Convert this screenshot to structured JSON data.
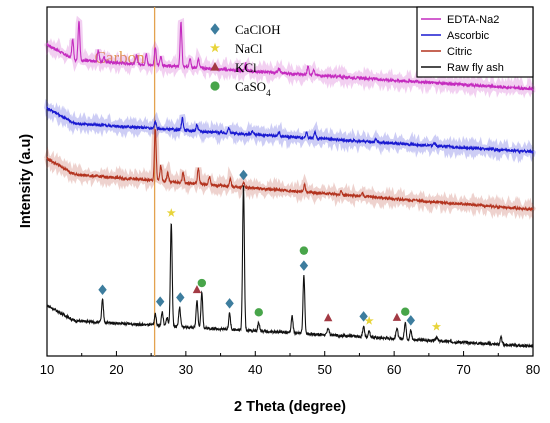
{
  "chart_data": {
    "type": "line",
    "xlabel": "2 Theta (degree)",
    "ylabel": "Intensity (a.u)",
    "xlim": [
      10,
      80
    ],
    "x_ticks": [
      10,
      20,
      30,
      40,
      50,
      60,
      70,
      80
    ],
    "y_ticks_shown": false,
    "grid": false,
    "legend_placement": "top-right",
    "reference_line": {
      "x": 25.5,
      "label": "Carbon",
      "color": "#e3a24f"
    },
    "series": [
      {
        "name": "EDTA-Na2",
        "color": "#c42bbf",
        "baseline": [
          [
            10,
            0.853
          ],
          [
            80,
            0.765
          ]
        ],
        "peaks": [
          [
            13.7,
            0.055
          ],
          [
            14.6,
            0.112
          ],
          [
            17.4,
            0.032
          ],
          [
            18.2,
            0.015
          ],
          [
            22.9,
            0.024
          ],
          [
            24.3,
            0.03
          ],
          [
            25.6,
            0.05
          ],
          [
            26.4,
            0.026
          ],
          [
            29.3,
            0.125
          ],
          [
            30.6,
            0.028
          ],
          [
            31.8,
            0.025
          ],
          [
            38.6,
            0.022
          ],
          [
            43.4,
            0.012
          ],
          [
            47.6,
            0.024
          ],
          [
            48.4,
            0.018
          ]
        ]
      },
      {
        "name": "Ascorbic",
        "color": "#1a1ad1",
        "baseline": [
          [
            10,
            0.671
          ],
          [
            80,
            0.585
          ]
        ],
        "peaks": [
          [
            25.6,
            0.02
          ],
          [
            29.5,
            0.035
          ],
          [
            31.6,
            0.018
          ],
          [
            36.2,
            0.014
          ],
          [
            39.6,
            0.011
          ],
          [
            43.4,
            0.012
          ],
          [
            47.4,
            0.016
          ],
          [
            48.6,
            0.018
          ],
          [
            57.4,
            0.01
          ],
          [
            65.8,
            0.008
          ]
        ]
      },
      {
        "name": "Citric",
        "color": "#b3331f",
        "baseline": [
          [
            10,
            0.526
          ],
          [
            80,
            0.42
          ]
        ],
        "peaks": [
          [
            25.6,
            0.145
          ],
          [
            26.4,
            0.045
          ],
          [
            27.4,
            0.025
          ],
          [
            29.6,
            0.03
          ],
          [
            31.8,
            0.045
          ],
          [
            33.4,
            0.025
          ],
          [
            36.4,
            0.02
          ],
          [
            38.3,
            0.015
          ],
          [
            47.1,
            0.02
          ],
          [
            52.4,
            0.012
          ],
          [
            55.4,
            0.012
          ]
        ]
      },
      {
        "name": "Raw fly ash",
        "color": "#111111",
        "baseline": [
          [
            10,
            0.105
          ],
          [
            80,
            0.028
          ]
        ],
        "peaks": [
          [
            18.0,
            0.065
          ],
          [
            25.6,
            0.032
          ],
          [
            26.6,
            0.04
          ],
          [
            27.3,
            0.025
          ],
          [
            27.9,
            0.296
          ],
          [
            29.1,
            0.055
          ],
          [
            31.6,
            0.08
          ],
          [
            32.3,
            0.1
          ],
          [
            36.3,
            0.046
          ],
          [
            38.3,
            0.416
          ],
          [
            40.5,
            0.025
          ],
          [
            45.3,
            0.048
          ],
          [
            47.0,
            0.166
          ],
          [
            50.5,
            0.02
          ],
          [
            55.6,
            0.03
          ],
          [
            56.4,
            0.018
          ],
          [
            60.4,
            0.032
          ],
          [
            61.6,
            0.05
          ],
          [
            62.4,
            0.026
          ],
          [
            66.1,
            0.012
          ],
          [
            75.4,
            0.02
          ]
        ]
      }
    ],
    "phase_legend": [
      {
        "label": "CaClOH",
        "marker": "diamond",
        "color": "#3d7d9e"
      },
      {
        "label": "NaCl",
        "marker": "star",
        "color": "#e8d43a"
      },
      {
        "label": "KCl",
        "marker": "triangle",
        "color": "#a33a44"
      },
      {
        "label": "CaSO",
        "label_subscript": "4",
        "marker": "circle",
        "color": "#48a54a"
      }
    ],
    "phase_markers": [
      {
        "phase": "CaClOH",
        "x": [
          18.0,
          26.3,
          29.2,
          36.3,
          38.3,
          47.0,
          55.6,
          62.4
        ]
      },
      {
        "phase": "NaCl",
        "x": [
          27.9,
          56.4,
          66.1
        ]
      },
      {
        "phase": "KCl",
        "x": [
          31.6,
          50.5,
          60.4
        ]
      },
      {
        "phase": "CaSO4",
        "x": [
          32.3,
          40.5,
          47.0,
          61.6
        ]
      }
    ]
  }
}
